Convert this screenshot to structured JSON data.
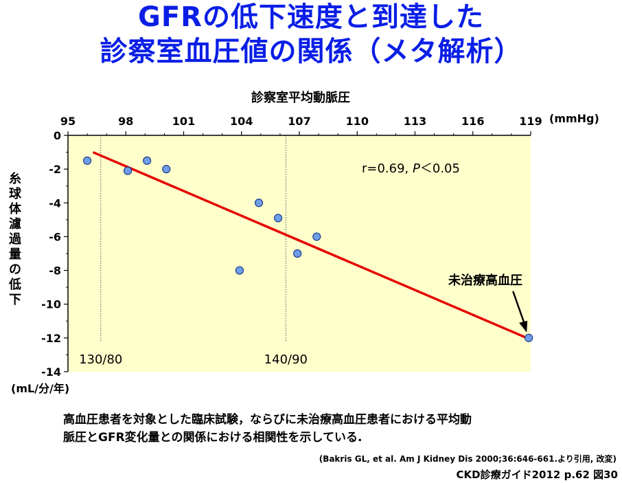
{
  "title": {
    "line1": "GFRの低下速度と到達した",
    "line2": "診察室血圧値の関係（メタ解析）"
  },
  "caption": {
    "line1": "高血圧患者を対象とした臨床試験，ならびに未治療高血圧患者における平均動",
    "line2": "脈圧とGFR変化量との関係における相関性を示している."
  },
  "citation": "(Bakris GL, et al. Am J Kidney Dis 2000;36:646-661.より引用, 改変)",
  "source": "CKD診療ガイド2012 p.62  図30",
  "colors": {
    "title": "#0a1ee6",
    "plot_background": "#ffffcc",
    "regression_line": "#e60000",
    "point_fill": "#6f9ee8",
    "point_stroke": "#1e3c8c"
  },
  "chart_data": {
    "type": "scatter",
    "title": "",
    "xlabel": "診察室平均動脈圧",
    "x_unit": "(mmHg)",
    "ylabel": "糸球体濾過量の低下",
    "y_unit": "(mL/分/年)",
    "xlim": [
      95,
      119
    ],
    "ylim": [
      -14,
      0
    ],
    "x_ticks": [
      95,
      98,
      101,
      104,
      107,
      110,
      113,
      116,
      119
    ],
    "y_ticks": [
      0,
      -2,
      -4,
      -6,
      -8,
      -10,
      -12,
      -14
    ],
    "x_axis_position": "top",
    "grid": false,
    "points": [
      {
        "x": 96.0,
        "y": -1.5
      },
      {
        "x": 98.1,
        "y": -2.1
      },
      {
        "x": 99.1,
        "y": -1.5
      },
      {
        "x": 100.1,
        "y": -2.0
      },
      {
        "x": 103.9,
        "y": -8.0
      },
      {
        "x": 104.9,
        "y": -4.0
      },
      {
        "x": 105.9,
        "y": -4.9
      },
      {
        "x": 106.9,
        "y": -7.0
      },
      {
        "x": 107.9,
        "y": -6.0
      },
      {
        "x": 118.9,
        "y": -12.0
      }
    ],
    "regression": {
      "x1": 96.3,
      "y1": -1.0,
      "x2": 118.8,
      "y2": -12.0
    },
    "reference_lines": [
      {
        "x": 96.7,
        "label": "130/80"
      },
      {
        "x": 106.3,
        "label": "140/90"
      }
    ],
    "annotations": {
      "stats": "r=0.69, ",
      "stats_p": "P",
      "stats_tail": "＜0.05",
      "untreated_label": "未治療高血圧",
      "untreated_point": {
        "x": 118.9,
        "y": -12.0
      }
    }
  }
}
